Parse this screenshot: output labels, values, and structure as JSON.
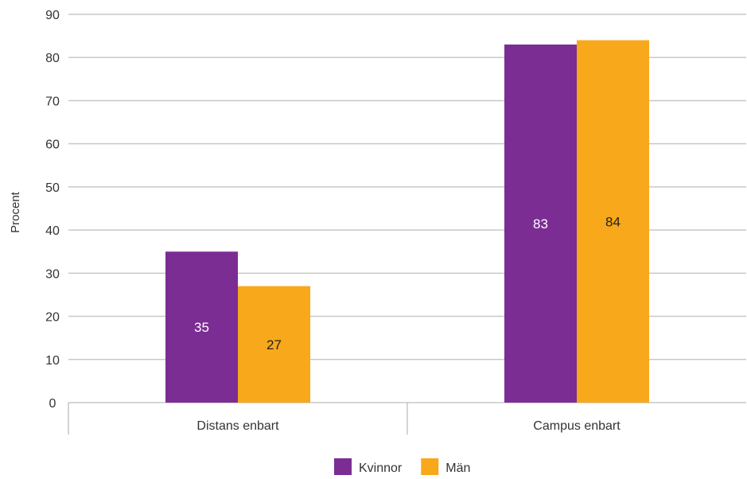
{
  "chart_data": {
    "type": "bar",
    "ylabel": "Procent",
    "xlabel": "",
    "ylim": [
      0,
      90
    ],
    "yticks": [
      0,
      10,
      20,
      30,
      40,
      50,
      60,
      70,
      80,
      90
    ],
    "grid": true,
    "legend_position": "bottom-center",
    "categories": [
      "Distans enbart",
      "Campus enbart"
    ],
    "series": [
      {
        "name": "Kvinnor",
        "color": "#7b2d93",
        "label_color": "#ffffff",
        "values": [
          35,
          83
        ]
      },
      {
        "name": "Män",
        "color": "#f7a81b",
        "label_color": "#222222",
        "values": [
          27,
          84
        ]
      }
    ]
  }
}
